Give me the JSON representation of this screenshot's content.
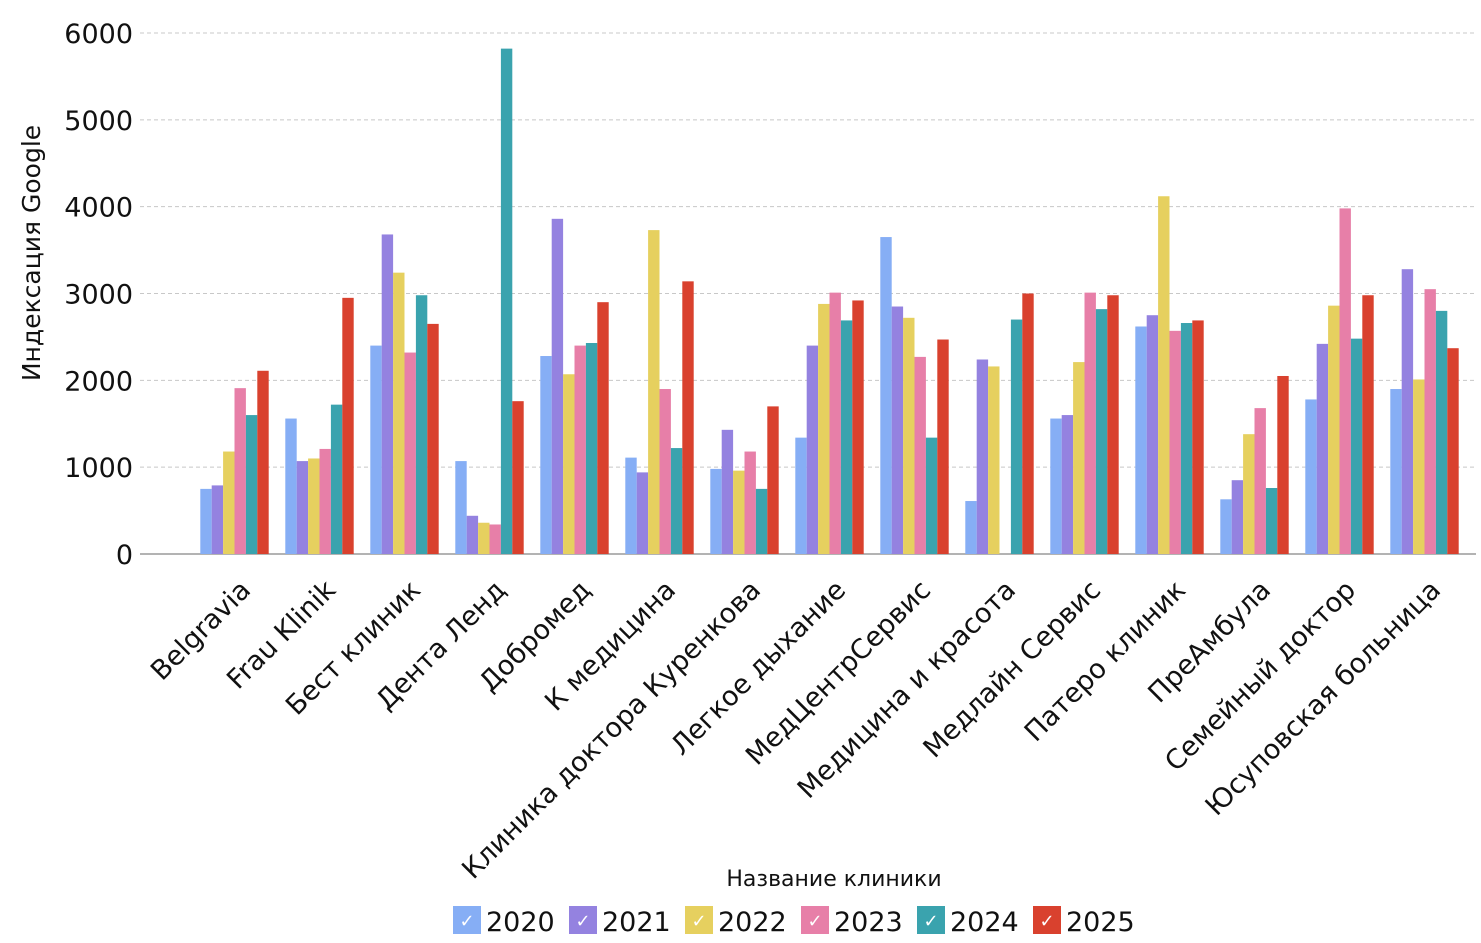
{
  "chart_data": {
    "type": "bar",
    "title": "",
    "xlabel": "Название клиники",
    "ylabel": "Индексация Google",
    "ylim": [
      0,
      6000
    ],
    "yticks": [
      0,
      1000,
      2000,
      3000,
      4000,
      5000,
      6000
    ],
    "grid": true,
    "legend_position": "bottom",
    "categories": [
      "Belgravia",
      "Frau Klinik",
      "Бест клиник",
      "Дента Ленд",
      "Добромед",
      "К медицина",
      "Клиника доктора Куренкова",
      "Легкое дыхание",
      "МедЦентрСервис",
      "Медицина и красота",
      "Медлайн Сервис",
      "Патеро клиник",
      "ПреАмбула",
      "Семейный доктор",
      "Юсуповская больница"
    ],
    "series": [
      {
        "name": "2020",
        "color": "#86aef5",
        "values": [
          750,
          1560,
          2400,
          1070,
          2280,
          1110,
          980,
          1340,
          3650,
          610,
          1560,
          2620,
          630,
          1780,
          1900
        ]
      },
      {
        "name": "2021",
        "color": "#9482e0",
        "values": [
          790,
          1070,
          3680,
          440,
          3860,
          940,
          1430,
          2400,
          2850,
          2240,
          1600,
          2750,
          850,
          2420,
          3280
        ]
      },
      {
        "name": "2022",
        "color": "#e6d05f",
        "values": [
          1180,
          1100,
          3240,
          360,
          2070,
          3730,
          960,
          2880,
          2720,
          2160,
          2210,
          4120,
          1380,
          2860,
          2010
        ]
      },
      {
        "name": "2023",
        "color": "#e77fa8",
        "values": [
          1910,
          1210,
          2320,
          340,
          2400,
          1900,
          1180,
          3010,
          2270,
          0,
          3010,
          2570,
          1680,
          3980,
          3050
        ]
      },
      {
        "name": "2024",
        "color": "#3aa3ae",
        "values": [
          1600,
          1720,
          2980,
          5820,
          2430,
          1220,
          750,
          2690,
          1340,
          2700,
          2820,
          2660,
          760,
          2480,
          2800
        ]
      },
      {
        "name": "2025",
        "color": "#d9412e",
        "values": [
          2110,
          2950,
          2650,
          1760,
          2900,
          3140,
          1700,
          2920,
          2470,
          3000,
          2980,
          2690,
          2050,
          2980,
          2370
        ]
      }
    ]
  }
}
